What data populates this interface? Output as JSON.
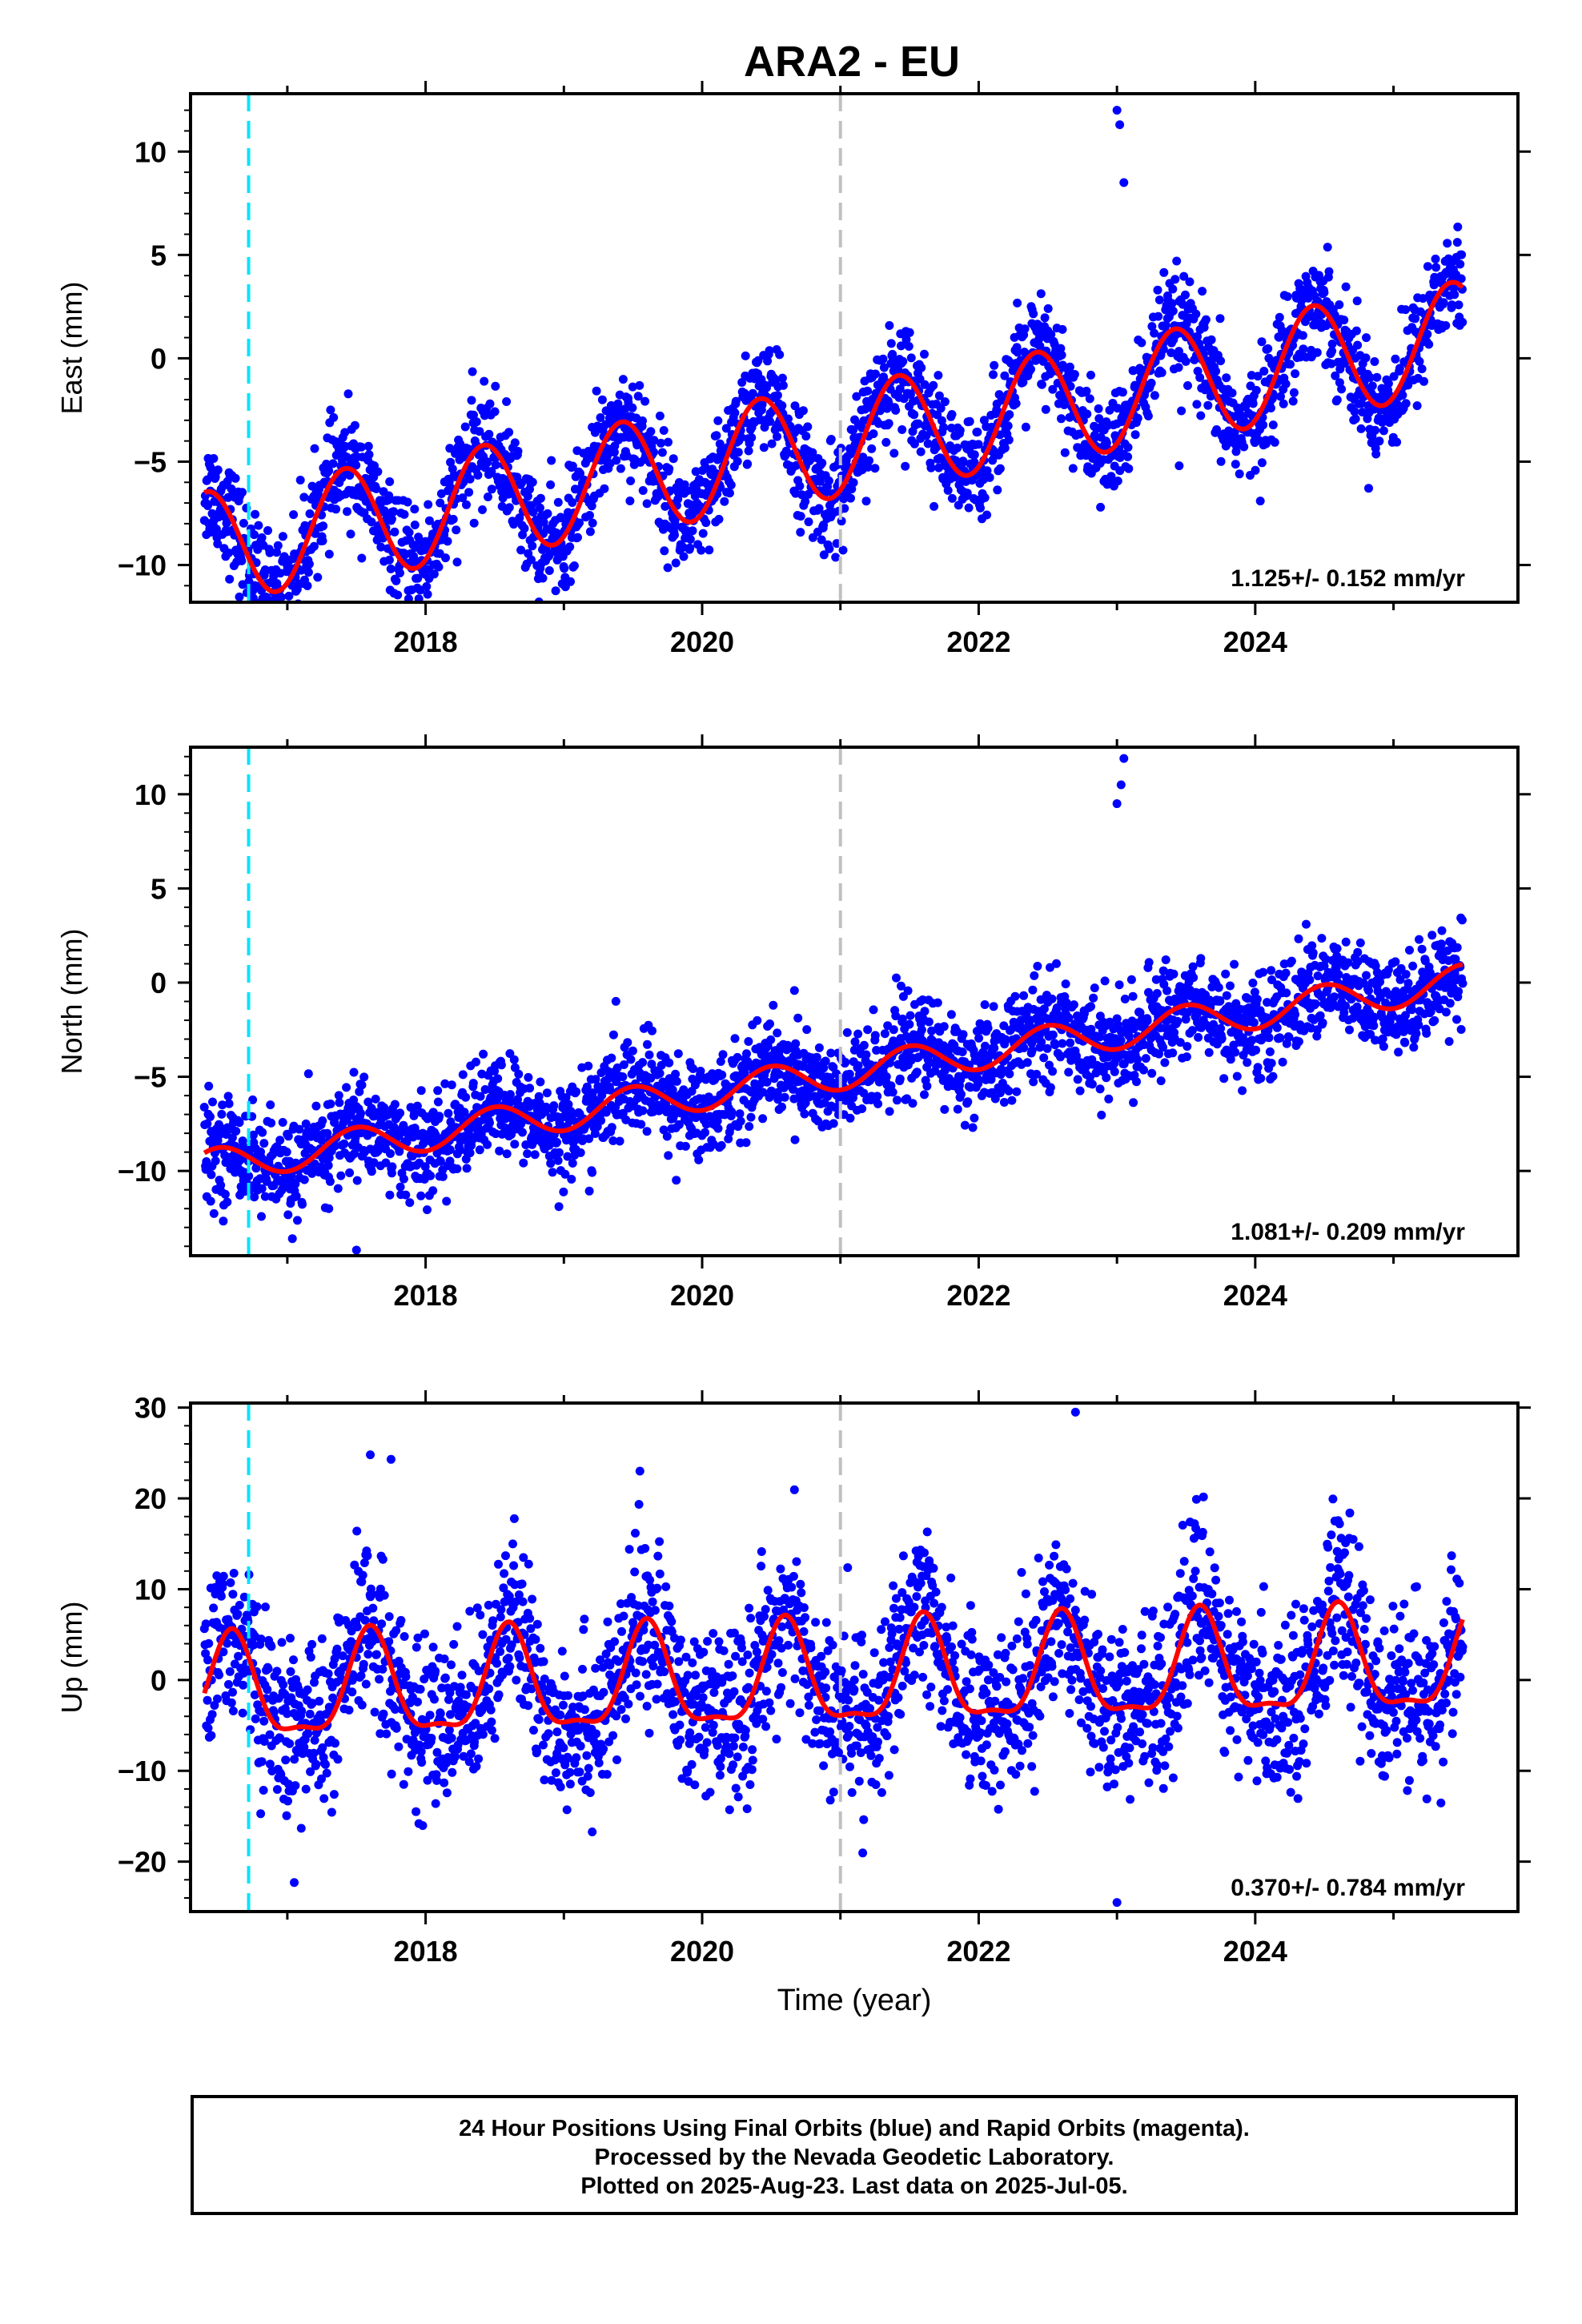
{
  "title": "ARA2 - EU",
  "xlabel": "Time (year)",
  "footer": {
    "line1": "24 Hour Positions Using Final Orbits (blue) and Rapid Orbits (magenta).",
    "line2": "Processed by the Nevada Geodetic Laboratory.",
    "line3": "Plotted on 2025-Aug-23. Last data on 2025-Jul-05."
  },
  "colors": {
    "points": "#0000ff",
    "model": "#ff0000",
    "equipment_change_line": "#00e5ff",
    "reference_line": "#c0c0c0",
    "frame": "#000000"
  },
  "chart_data": [
    {
      "type": "scatter",
      "component": "East",
      "ylabel": "East (mm)",
      "xlim": [
        2016.3,
        2025.9
      ],
      "ylim": [
        -11.8,
        12.8
      ],
      "xticks": [
        2018,
        2020,
        2022,
        2024
      ],
      "yticks": [
        -10,
        -5,
        0,
        5,
        10
      ],
      "ytick_labels": [
        "−10",
        "−5",
        "0",
        "5",
        "10"
      ],
      "vertical_lines": [
        {
          "x": 2016.72,
          "color": "cyan"
        },
        {
          "x": 2021.0,
          "color": "gray"
        }
      ],
      "rate_label": "1.125+/- 0.152 mm/yr",
      "model": {
        "start": 2016.4,
        "end": 2025.5,
        "intercept": -4.0,
        "trend_mm_per_yr": 1.125,
        "annual_amplitude": 2.7,
        "peak_phase_year": 0.42,
        "semiannual_amplitude": 0.0
      },
      "scatter": {
        "noise_sd": 1.3,
        "note": "daily positions scattered around model"
      },
      "outliers": [
        [
          2023.0,
          12.0
        ],
        [
          2023.02,
          11.3
        ],
        [
          2023.05,
          8.5
        ],
        [
          2017.9,
          -11.2
        ],
        [
          2016.9,
          -11.3
        ],
        [
          2023.45,
          -5.2
        ]
      ]
    },
    {
      "type": "scatter",
      "component": "North",
      "ylabel": "North (mm)",
      "xlim": [
        2016.3,
        2025.9
      ],
      "ylim": [
        -14.5,
        12.5
      ],
      "xticks": [
        2018,
        2020,
        2022,
        2024
      ],
      "yticks": [
        -10,
        -5,
        0,
        5,
        10
      ],
      "ytick_labels": [
        "−10",
        "−5",
        "0",
        "5",
        "10"
      ],
      "vertical_lines": [
        {
          "x": 2016.72,
          "color": "cyan"
        },
        {
          "x": 2021.0,
          "color": "gray"
        }
      ],
      "rate_label": "1.081+/- 0.209 mm/yr",
      "model": {
        "start": 2016.4,
        "end": 2025.5,
        "intercept": -4.8,
        "trend_mm_per_yr": 1.081,
        "annual_amplitude": 0.9,
        "peak_phase_year": 0.5,
        "semiannual_amplitude": 0.0
      },
      "scatter": {
        "noise_sd": 1.3,
        "note": "daily positions scattered around model"
      },
      "outliers": [
        [
          2023.05,
          11.9
        ],
        [
          2023.03,
          10.5
        ],
        [
          2023.0,
          9.5
        ],
        [
          2017.5,
          -14.2
        ],
        [
          2016.45,
          -10.2
        ],
        [
          2017.3,
          -12.0
        ]
      ]
    },
    {
      "type": "scatter",
      "component": "Up",
      "ylabel": "Up (mm)",
      "xlim": [
        2016.3,
        2025.9
      ],
      "ylim": [
        -25.5,
        30.5
      ],
      "xticks": [
        2018,
        2020,
        2022,
        2024
      ],
      "yticks": [
        -20,
        -10,
        0,
        10,
        20,
        30
      ],
      "ytick_labels": [
        "−20",
        "−10",
        "0",
        "10",
        "20",
        "30"
      ],
      "vertical_lines": [
        {
          "x": 2016.72,
          "color": "cyan"
        },
        {
          "x": 2021.0,
          "color": "gray"
        }
      ],
      "rate_label": "0.370+/- 0.784 mm/yr",
      "model": {
        "start": 2016.4,
        "end": 2025.5,
        "intercept": 0.0,
        "trend_mm_per_yr": 0.37,
        "annual_amplitude": 5.5,
        "peak_phase_year": 0.6,
        "semiannual_amplitude": 1.8
      },
      "scatter": {
        "noise_sd": 4.5,
        "note": "daily positions scattered around model"
      },
      "outliers": [
        [
          2022.7,
          29.5
        ],
        [
          2017.6,
          24.8
        ],
        [
          2017.75,
          24.3
        ],
        [
          2023.0,
          -24.5
        ],
        [
          2019.55,
          23.0
        ],
        [
          2017.05,
          -22.3
        ]
      ]
    }
  ]
}
